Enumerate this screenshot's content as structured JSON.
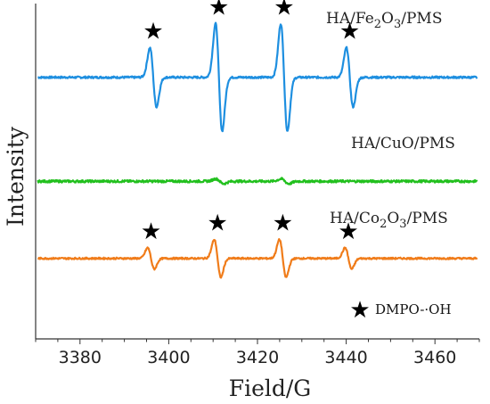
{
  "chart_data": {
    "type": "line",
    "xlabel": "Field/G",
    "ylabel": "Intensity",
    "xlim": [
      3370,
      3470
    ],
    "xticks": [
      3380,
      3400,
      3420,
      3440,
      3460
    ],
    "grid": false,
    "marker_symbol": "★",
    "series": [
      {
        "name": "HA/Fe2O3/PMS",
        "label_parts": [
          {
            "t": "HA/Fe",
            "sub": false
          },
          {
            "t": "2",
            "sub": true
          },
          {
            "t": "O",
            "sub": false
          },
          {
            "t": "3",
            "sub": true
          },
          {
            "t": "/PMS",
            "sub": false
          }
        ],
        "color": "#1e8fe0",
        "baseline": 0.78,
        "amplitude": 0.16,
        "noise": 0.006,
        "peaks": [
          3396.5,
          3411.3,
          3426.0,
          3440.8
        ],
        "peak_scale": [
          0.55,
          1.0,
          1.0,
          0.55
        ],
        "peak_width": 0.75,
        "star_peaks": [
          3396.5,
          3411.3,
          3426.0,
          3440.8
        ]
      },
      {
        "name": "HA/CuO/PMS",
        "label_parts": [
          {
            "t": "HA/CuO/PMS",
            "sub": false
          }
        ],
        "color": "#22c01e",
        "baseline": 0.47,
        "amplitude": 0.012,
        "noise": 0.007,
        "peaks": [
          3411.5,
          3426.2
        ],
        "peak_scale": [
          0.6,
          0.6
        ],
        "peak_width": 0.9,
        "star_peaks": []
      },
      {
        "name": "HA/Co2O3/PMS",
        "label_parts": [
          {
            "t": "HA/Co",
            "sub": false
          },
          {
            "t": "2",
            "sub": true
          },
          {
            "t": "O",
            "sub": false
          },
          {
            "t": "3",
            "sub": true
          },
          {
            "t": "/PMS",
            "sub": false
          }
        ],
        "color": "#f07c1a",
        "baseline": 0.24,
        "amplitude": 0.07,
        "noise": 0.005,
        "peaks": [
          3396.0,
          3411.0,
          3425.7,
          3440.5
        ],
        "peak_scale": [
          0.45,
          0.8,
          0.8,
          0.45
        ],
        "peak_width": 0.75,
        "star_peaks": [
          3396.0,
          3411.0,
          3425.7,
          3440.5
        ]
      }
    ],
    "legend": {
      "symbol": "★",
      "text": "DMPO-·OH",
      "position": "bottom-right"
    }
  }
}
